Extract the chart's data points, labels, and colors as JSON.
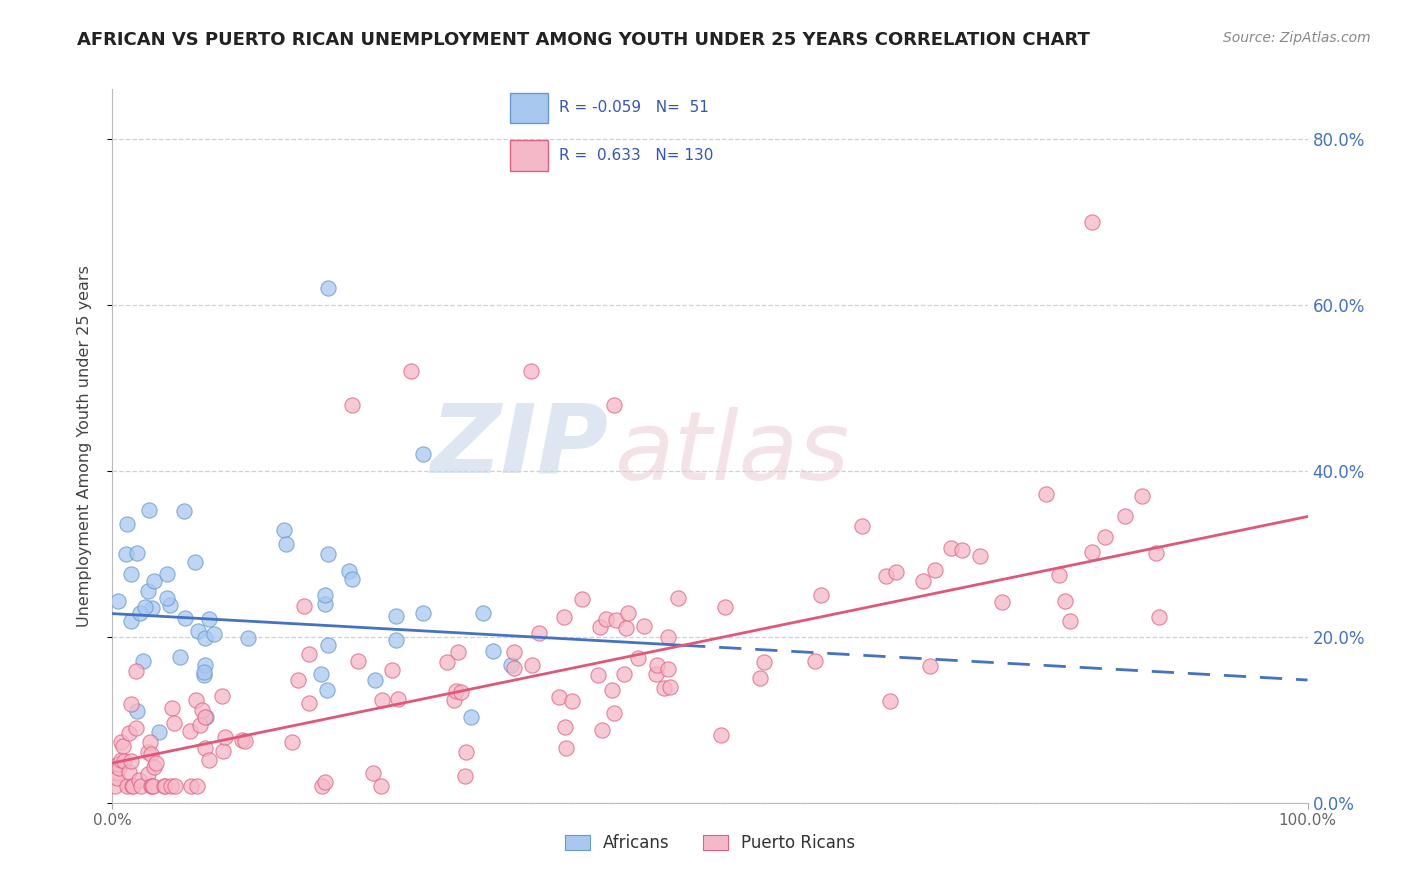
{
  "title": "AFRICAN VS PUERTO RICAN UNEMPLOYMENT AMONG YOUTH UNDER 25 YEARS CORRELATION CHART",
  "source": "Source: ZipAtlas.com",
  "ylabel": "Unemployment Among Youth under 25 years",
  "xlim": [
    0.0,
    1.0
  ],
  "ylim": [
    0.0,
    0.86
  ],
  "xtick_positions": [
    0.0,
    1.0
  ],
  "xticklabels": [
    "0.0%",
    "100.0%"
  ],
  "ytick_positions": [
    0.0,
    0.2,
    0.4,
    0.6,
    0.8
  ],
  "right_yticklabels": [
    "0.0%",
    "20.0%",
    "40.0%",
    "60.0%",
    "80.0%"
  ],
  "africans_color": "#a8c8f0",
  "africans_edge_color": "#6699cc",
  "puerto_ricans_color": "#f5b8c8",
  "puerto_ricans_edge_color": "#e06080",
  "africans_line_color": "#4472c4",
  "puerto_ricans_line_color": "#e05878",
  "africans_R": -0.059,
  "africans_N": 51,
  "puerto_ricans_R": 0.633,
  "puerto_ricans_N": 130,
  "watermark_zip": "ZIP",
  "watermark_atlas": "atlas",
  "background_color": "#ffffff",
  "grid_color": "#cccccc",
  "legend_text_color": "#3355bb",
  "right_tick_color": "#4472c4",
  "africans_line_start_y": 0.228,
  "africans_line_end_y": 0.148,
  "puerto_ricans_line_start_y": 0.048,
  "puerto_ricans_line_end_y": 0.345
}
